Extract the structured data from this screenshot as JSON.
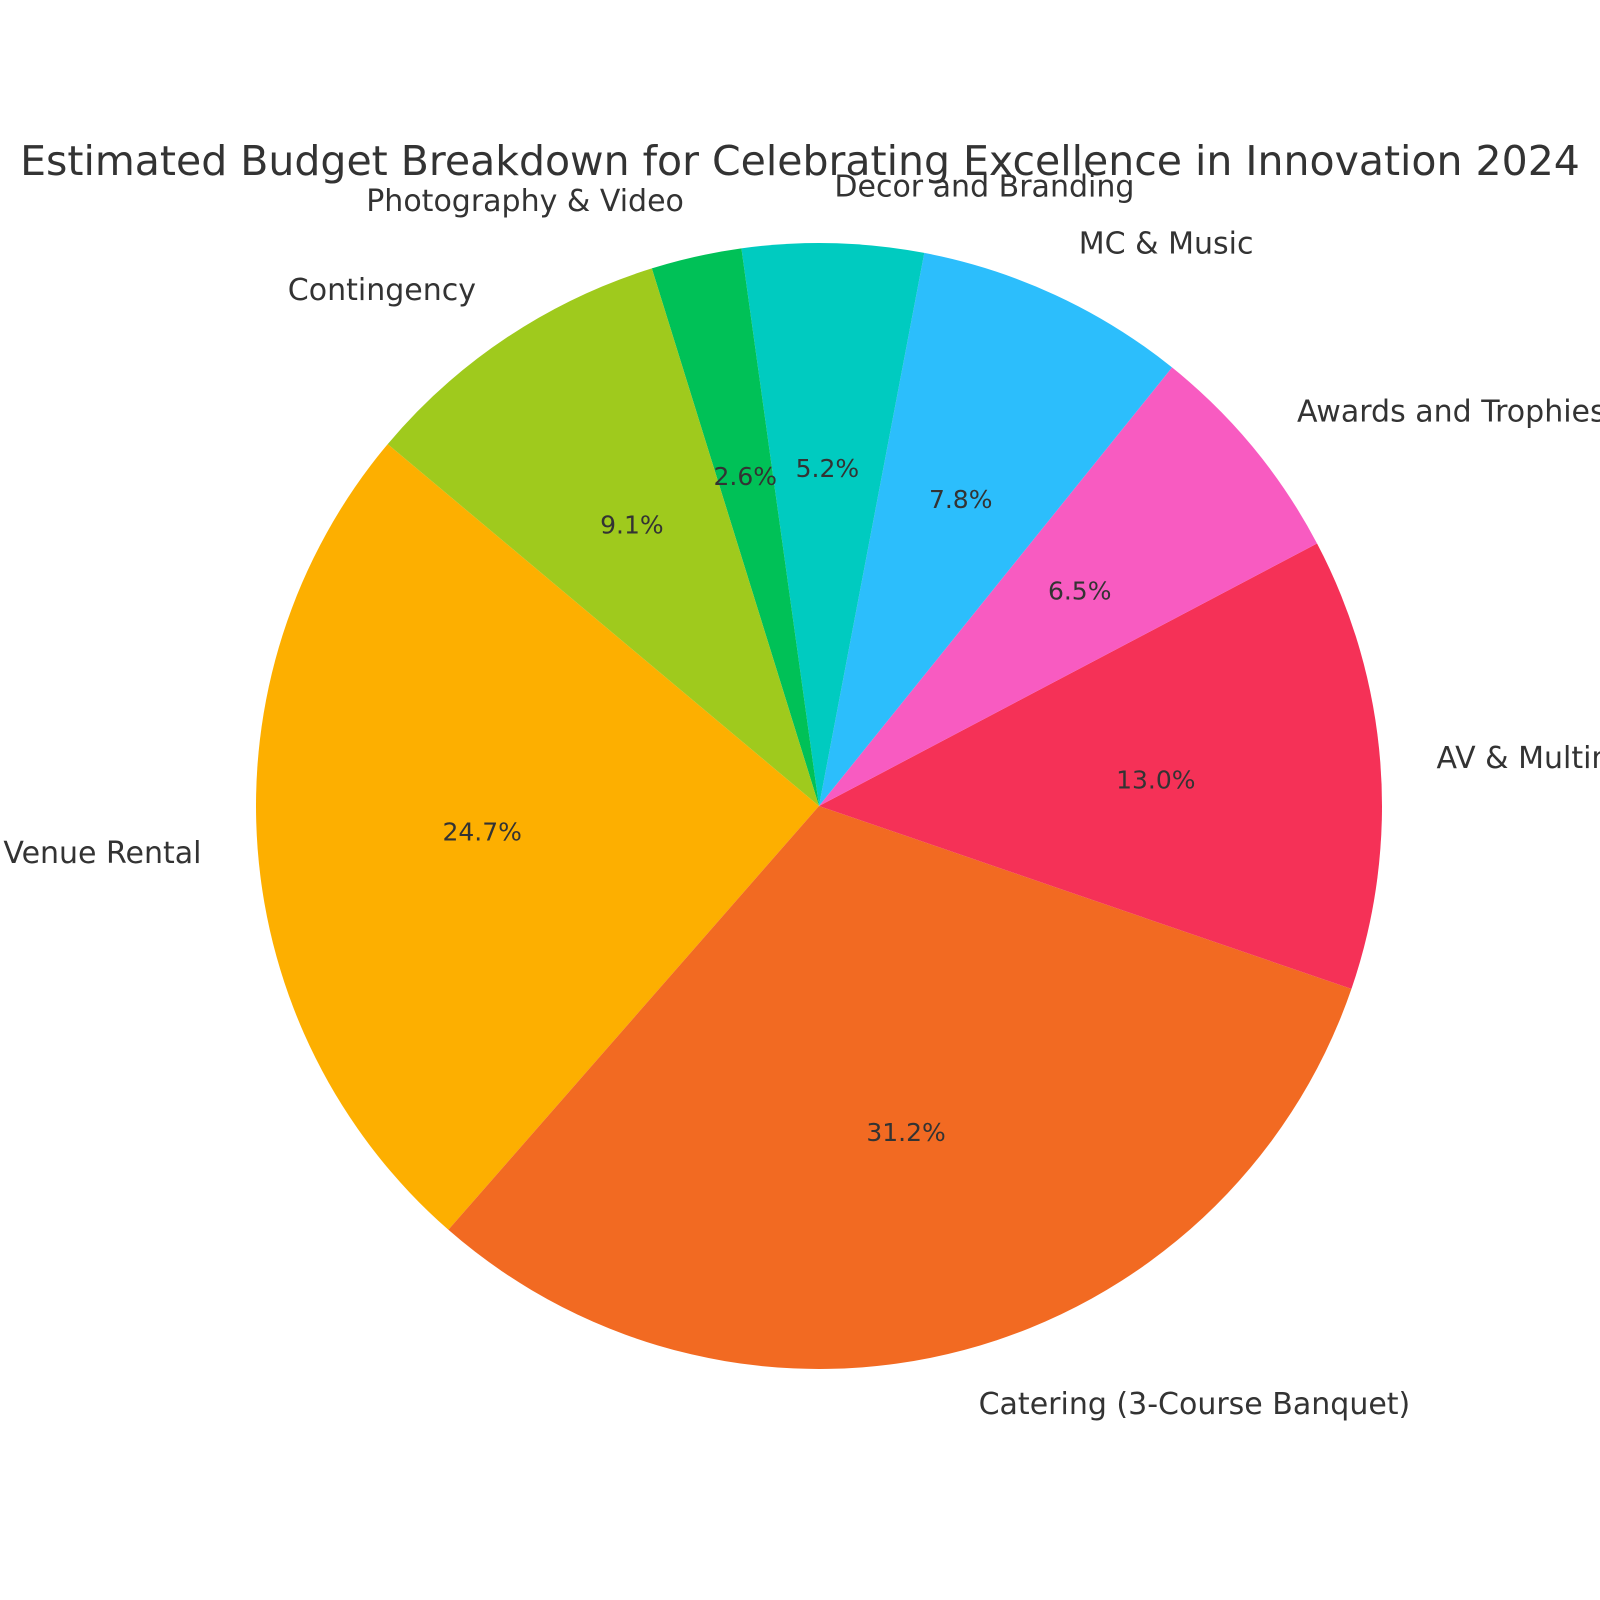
{
  "chart_data": {
    "type": "pie",
    "title": "Estimated Budget Breakdown for Celebrating Excellence in Innovation 2024",
    "categories": [
      "Venue Rental",
      "Catering (3-Course Banquet)",
      "AV & Multimedia",
      "Awards and Trophies",
      "MC & Music",
      "Decor and Branding",
      "Photography & Video",
      "Contingency"
    ],
    "values": [
      24.7,
      31.2,
      13.0,
      6.5,
      7.8,
      5.2,
      2.6,
      9.1
    ],
    "percent_labels": [
      "24.7%",
      "31.2%",
      "13.0%",
      "6.5%",
      "7.8%",
      "5.2%",
      "2.6%",
      "9.1%"
    ],
    "colors": [
      "#FDAF00",
      "#F26A22",
      "#F53157",
      "#F85BC1",
      "#2CBEFC",
      "#00CBC0",
      "#00C157",
      "#9FCA1D"
    ],
    "start_angle_deg": 140,
    "direction": "counterclockwise"
  }
}
